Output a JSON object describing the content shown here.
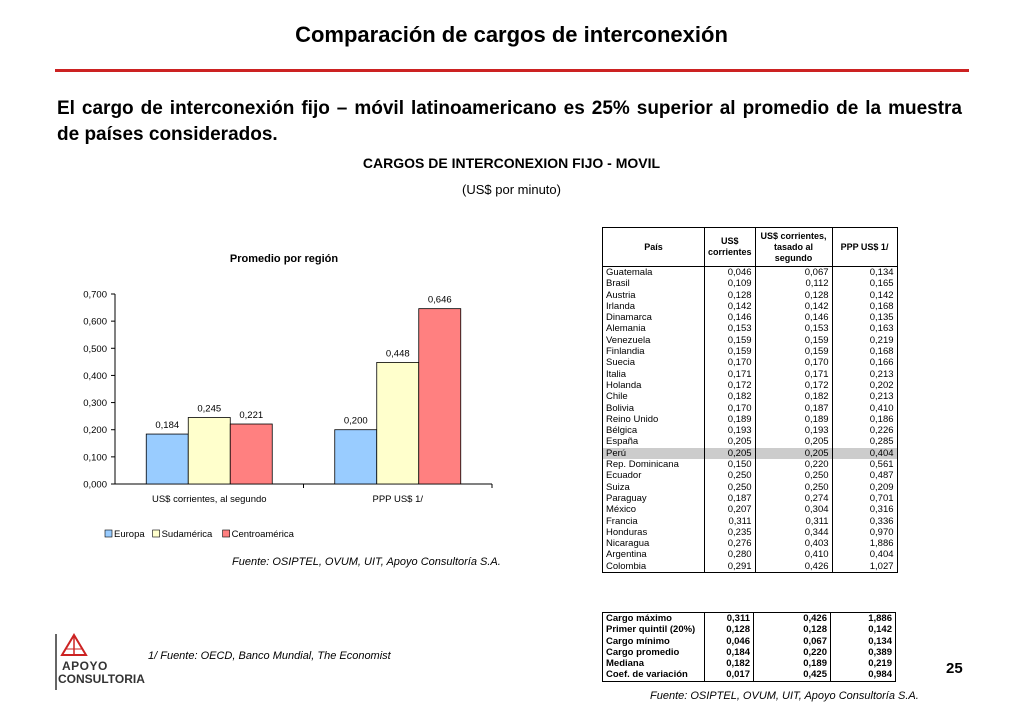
{
  "slide": {
    "title": "Comparación de cargos de interconexión",
    "subtitle": "El cargo de interconexión fijo – móvil latinoamericano es 25% superior al promedio de la muestra de países considerados.",
    "chart_heading": "CARGOS DE INTERCONEXION FIJO - MOVIL",
    "chart_units": "(US$ por minuto)",
    "source_left": "Fuente: OSIPTEL, OVUM, UIT, Apoyo Consultoría S.A.",
    "source_right": "Fuente: OSIPTEL, OVUM, UIT, Apoyo Consultoría S.A.",
    "footnote": "1/  Fuente: OECD, Banco Mundial, The Economist",
    "page_number": "25",
    "logo_line1": "APOYO",
    "logo_line2": "CONSULTORIA",
    "accent_color": "#cc2222"
  },
  "chart_data": {
    "type": "bar",
    "title": "Promedio por región",
    "categories": [
      "US$ corrientes, al segundo",
      "PPP US$ 1/"
    ],
    "series": [
      {
        "name": "Europa",
        "values": [
          0.184,
          0.2
        ],
        "labels": [
          "0,184",
          "0,200"
        ],
        "color": "#99ccff"
      },
      {
        "name": "Sudamérica",
        "values": [
          0.245,
          0.448
        ],
        "labels": [
          "0,245",
          "0,448"
        ],
        "color": "#ffffcc"
      },
      {
        "name": "Centroamérica",
        "values": [
          0.221,
          0.646
        ],
        "labels": [
          "0,221",
          "0,646"
        ],
        "color": "#ff8080"
      }
    ],
    "ylim": [
      0,
      0.7
    ],
    "yticks": [
      0,
      0.1,
      0.2,
      0.3,
      0.4,
      0.5,
      0.6,
      0.7
    ],
    "ytick_labels": [
      "0,000",
      "0,100",
      "0,200",
      "0,300",
      "0,400",
      "0,500",
      "0,600",
      "0,700"
    ],
    "legend_position": "bottom-left",
    "grid": false
  },
  "table": {
    "headers": [
      "País",
      "US$ corrientes",
      "US$ corrientes, tasado al segundo",
      "PPP US$ 1/"
    ],
    "rows": [
      [
        "Guatemala",
        "0,046",
        "0,067",
        "0,134"
      ],
      [
        "Brasil",
        "0,109",
        "0,112",
        "0,165"
      ],
      [
        "Austria",
        "0,128",
        "0,128",
        "0,142"
      ],
      [
        "Irlanda",
        "0,142",
        "0,142",
        "0,168"
      ],
      [
        "Dinamarca",
        "0,146",
        "0,146",
        "0,135"
      ],
      [
        "Alemania",
        "0,153",
        "0,153",
        "0,163"
      ],
      [
        "Venezuela",
        "0,159",
        "0,159",
        "0,219"
      ],
      [
        "Finlandia",
        "0,159",
        "0,159",
        "0,168"
      ],
      [
        "Suecia",
        "0,170",
        "0,170",
        "0,166"
      ],
      [
        "Italia",
        "0,171",
        "0,171",
        "0,213"
      ],
      [
        "Holanda",
        "0,172",
        "0,172",
        "0,202"
      ],
      [
        "Chile",
        "0,182",
        "0,182",
        "0,213"
      ],
      [
        "Bolivia",
        "0,170",
        "0,187",
        "0,410"
      ],
      [
        "Reino Unido",
        "0,189",
        "0,189",
        "0,186"
      ],
      [
        "Bélgica",
        "0,193",
        "0,193",
        "0,226"
      ],
      [
        "España",
        "0,205",
        "0,205",
        "0,285"
      ],
      [
        "Perú",
        "0,205",
        "0,205",
        "0,404"
      ],
      [
        "Rep. Dominicana",
        "0,150",
        "0,220",
        "0,561"
      ],
      [
        "Ecuador",
        "0,250",
        "0,250",
        "0,487"
      ],
      [
        "Suiza",
        "0,250",
        "0,250",
        "0,209"
      ],
      [
        "Paraguay",
        "0,187",
        "0,274",
        "0,701"
      ],
      [
        "México",
        "0,207",
        "0,304",
        "0,316"
      ],
      [
        "Francia",
        "0,311",
        "0,311",
        "0,336"
      ],
      [
        "Honduras",
        "0,235",
        "0,344",
        "0,970"
      ],
      [
        "Nicaragua",
        "0,276",
        "0,403",
        "1,886"
      ],
      [
        "Argentina",
        "0,280",
        "0,410",
        "0,404"
      ],
      [
        "Colombia",
        "0,291",
        "0,426",
        "1,027"
      ]
    ],
    "highlight_row": "Perú",
    "stats": [
      [
        "Cargo máximo",
        "0,311",
        "0,426",
        "1,886"
      ],
      [
        "Primer quintil (20%)",
        "0,128",
        "0,128",
        "0,142"
      ],
      [
        "Cargo mínimo",
        "0,046",
        "0,067",
        "0,134"
      ],
      [
        "Cargo promedio",
        "0,184",
        "0,220",
        "0,389"
      ],
      [
        "Mediana",
        "0,182",
        "0,189",
        "0,219"
      ],
      [
        "Coef. de variación",
        "0,017",
        "0,425",
        "0,984"
      ]
    ]
  }
}
